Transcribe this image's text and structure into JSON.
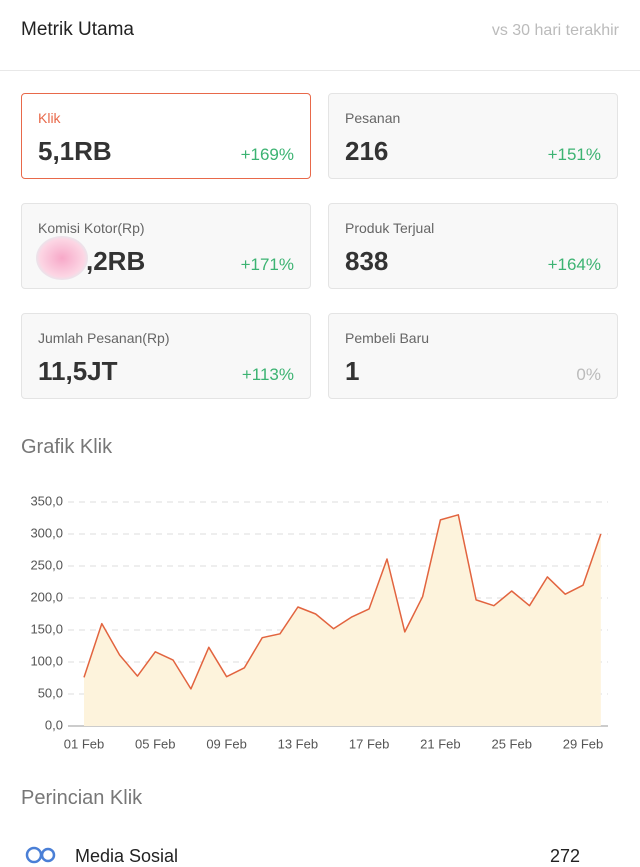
{
  "header": {
    "title": "Metrik Utama",
    "subtitle": "vs 30 hari terakhir"
  },
  "metrics": [
    {
      "label": "Klik",
      "value": "5,1RB",
      "change": "+169%",
      "color": "#3cb372",
      "selected": true
    },
    {
      "label": "Pesanan",
      "value": "216",
      "change": "+151%",
      "color": "#3cb372",
      "selected": false
    },
    {
      "label": "Komisi Kotor(Rp)",
      "value": ",2RB",
      "change": "+171%",
      "color": "#3cb372",
      "selected": false
    },
    {
      "label": "Produk Terjual",
      "value": "838",
      "change": "+164%",
      "color": "#3cb372",
      "selected": false
    },
    {
      "label": "Jumlah Pesanan(Rp)",
      "value": "11,5JT",
      "change": "+113%",
      "color": "#3cb372",
      "selected": false
    },
    {
      "label": "Pembeli Baru",
      "value": "1",
      "change": "0%",
      "color": "#bbbbbb",
      "selected": false
    }
  ],
  "chart_title": "Grafik Klik",
  "chart_data": {
    "type": "line",
    "categories": [
      "01 Feb",
      null,
      null,
      null,
      "05 Feb",
      null,
      null,
      null,
      "09 Feb",
      null,
      null,
      null,
      "13 Feb",
      null,
      null,
      null,
      "17 Feb",
      null,
      null,
      null,
      "21 Feb",
      null,
      null,
      null,
      "25 Feb",
      null,
      null,
      null,
      "29 Feb",
      null
    ],
    "values": [
      76,
      160,
      111,
      78,
      116,
      103,
      58,
      123,
      77,
      91,
      138,
      144,
      186,
      175,
      152,
      170,
      183,
      261,
      147,
      202,
      322,
      330,
      197,
      188,
      211,
      188,
      233,
      206,
      220,
      300
    ],
    "color": "#e2643f",
    "area_color": "#fdf3dc",
    "ylim": [
      0,
      350
    ],
    "yticks": [
      {
        "value": 0,
        "label": "0,0"
      },
      {
        "value": 50,
        "label": "50,0"
      },
      {
        "value": 100,
        "label": "100,0"
      },
      {
        "value": 150,
        "label": "150,0"
      },
      {
        "value": 200,
        "label": "200,0"
      },
      {
        "value": 250,
        "label": "250,0"
      },
      {
        "value": 300,
        "label": "300,0"
      },
      {
        "value": 350,
        "label": "350,0"
      }
    ],
    "grid": true
  },
  "breakdown": {
    "title": "Perincian Klik",
    "rows": [
      {
        "label": "Media Sosial",
        "value": "272"
      }
    ]
  }
}
